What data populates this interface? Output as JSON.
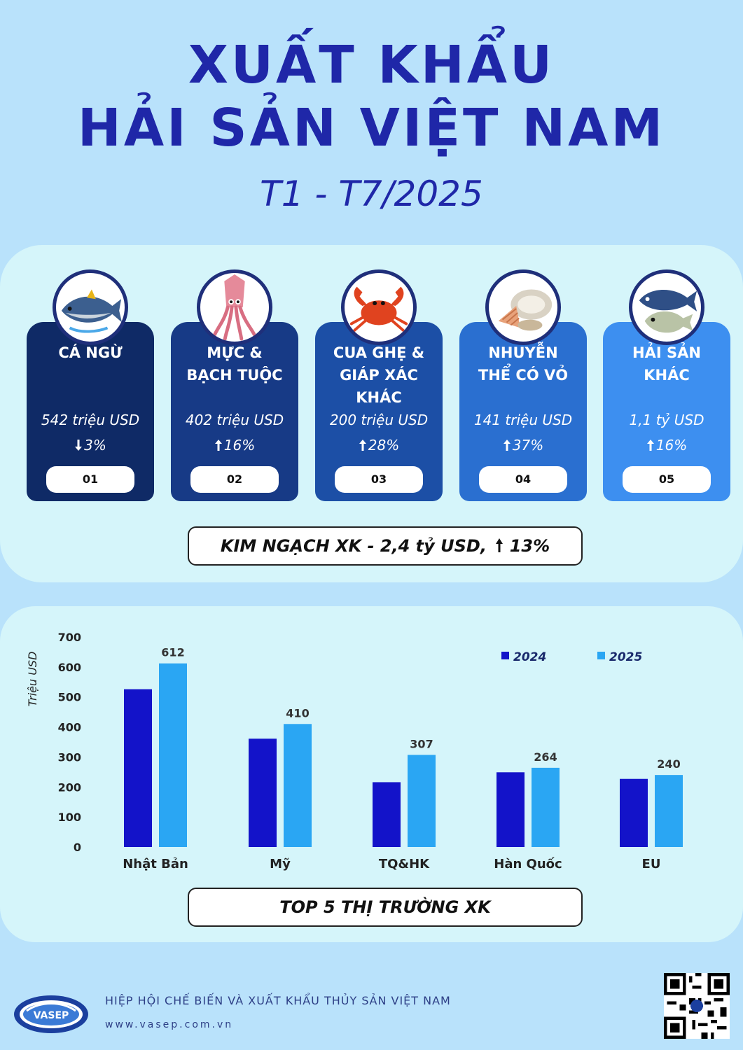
{
  "header": {
    "title_line1": "XUẤT KHẨU",
    "title_line2": "HẢI SẢN VIỆT NAM",
    "period": "T1 - T7/2025"
  },
  "products": [
    {
      "name_lines": [
        "CÁ NGỪ"
      ],
      "value": "542 triệu USD",
      "direction": "down",
      "change": "3%",
      "rank": "01",
      "color": "#0f2a66",
      "icon": "tuna-icon"
    },
    {
      "name_lines": [
        "MỰC &",
        "BẠCH TUỘC"
      ],
      "value": "402 triệu USD",
      "direction": "up",
      "change": "16%",
      "rank": "02",
      "color": "#173a86",
      "icon": "squid-icon"
    },
    {
      "name_lines": [
        "CUA GHẸ &",
        "GIÁP XÁC",
        "KHÁC"
      ],
      "value": "200 triệu USD",
      "direction": "up",
      "change": "28%",
      "rank": "03",
      "color": "#1c4fa6",
      "icon": "crab-icon"
    },
    {
      "name_lines": [
        "NHUYỄN",
        "THỂ CÓ VỎ"
      ],
      "value": "141 triệu USD",
      "direction": "up",
      "change": "37%",
      "rank": "04",
      "color": "#2a6fd0",
      "icon": "shellfish-icon"
    },
    {
      "name_lines": [
        "HẢI SẢN",
        "KHÁC"
      ],
      "value": "1,1 tỷ USD",
      "direction": "up",
      "change": "16%",
      "rank": "05",
      "color": "#3d8ff0",
      "icon": "fish-icon"
    }
  ],
  "summary": {
    "text": "KIM NGẠCH XK - 2,4 tỷ USD,",
    "direction": "up",
    "change": "13%"
  },
  "chart_data": {
    "type": "bar",
    "title": "",
    "ylabel": "Triệu USD",
    "xlabel": "",
    "categories": [
      "Nhật Bản",
      "Mỹ",
      "TQ&HK",
      "Hàn Quốc",
      "EU"
    ],
    "series": [
      {
        "name": "2024",
        "values": [
          526,
          361,
          216,
          249,
          227
        ],
        "color": "#1313c9"
      },
      {
        "name": "2025",
        "values": [
          612,
          410,
          307,
          264,
          240
        ],
        "color": "#2aa6f3"
      }
    ],
    "data_labels": {
      "series": "2025",
      "values": [
        612,
        410,
        307,
        264,
        240
      ]
    },
    "ylim": [
      0,
      700
    ],
    "yticks": [
      0,
      100,
      200,
      300,
      400,
      500,
      600,
      700
    ],
    "grid": false,
    "legend_position": "top-right"
  },
  "markets_label": "TOP 5 THỊ TRƯỜNG XK",
  "footer": {
    "organization": "HIỆP HỘI CHẾ BIẾN VÀ XUẤT KHẨU THỦY SẢN VIỆT NAM",
    "website": "www.vasep.com.vn",
    "logo_text": "VASEP"
  },
  "colors": {
    "background": "#b9e2fb",
    "panel": "#d5f5fa",
    "title": "#1f27a8"
  }
}
